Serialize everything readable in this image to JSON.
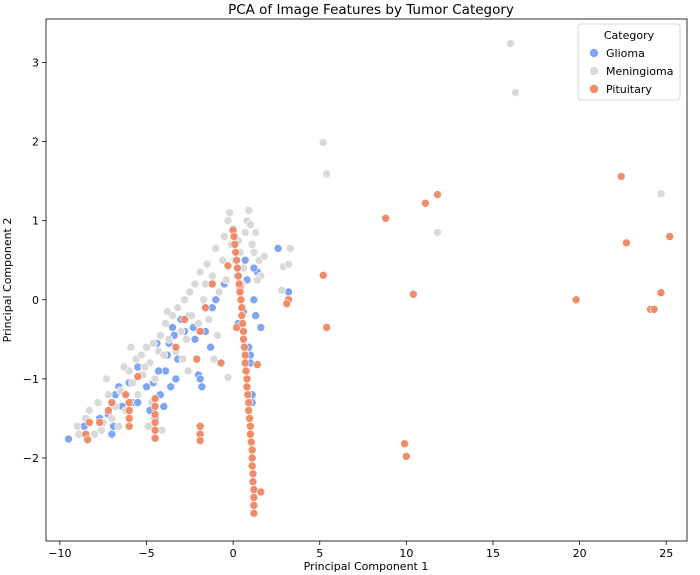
{
  "chart_data": {
    "type": "scatter",
    "title": "PCA of Image Features by Tumor Category",
    "xlabel": "Principal Component 1",
    "ylabel": "Principal Component 2",
    "xlim": [
      -10.8,
      26.2
    ],
    "ylim": [
      -3.05,
      3.55
    ],
    "xticks": [
      -10,
      -5,
      0,
      5,
      10,
      15,
      20,
      25
    ],
    "yticks": [
      -2,
      -1,
      0,
      1,
      2,
      3
    ],
    "grid": false,
    "legend": {
      "title": "Category",
      "position": "top-right"
    },
    "series": [
      {
        "name": "Glioma",
        "color": "#7ea6f0",
        "points": [
          [
            -9.5,
            -1.76
          ],
          [
            -8.6,
            -1.6
          ],
          [
            -7.7,
            -1.5
          ],
          [
            -7.2,
            -1.45
          ],
          [
            -7.0,
            -1.7
          ],
          [
            -6.9,
            -1.6
          ],
          [
            -6.8,
            -1.2
          ],
          [
            -6.6,
            -1.1
          ],
          [
            -6.4,
            -1.35
          ],
          [
            -6.0,
            -1.05
          ],
          [
            -5.8,
            -1.3
          ],
          [
            -5.5,
            -0.85
          ],
          [
            -5.3,
            -0.95
          ],
          [
            -5.0,
            -1.1
          ],
          [
            -4.8,
            -1.4
          ],
          [
            -4.6,
            -1.05
          ],
          [
            -4.5,
            -1.5
          ],
          [
            -4.4,
            -0.55
          ],
          [
            -4.2,
            -1.2
          ],
          [
            -4.0,
            -1.35
          ],
          [
            -3.9,
            -0.9
          ],
          [
            -3.8,
            -0.7
          ],
          [
            -3.6,
            -1.1
          ],
          [
            -3.5,
            -0.35
          ],
          [
            -3.4,
            -0.45
          ],
          [
            -3.2,
            -0.75
          ],
          [
            -3.0,
            -0.25
          ],
          [
            -3.3,
            -1.0
          ],
          [
            -2.8,
            -0.4
          ],
          [
            -2.5,
            -0.2
          ],
          [
            -2.3,
            -0.35
          ],
          [
            -2.0,
            -0.95
          ],
          [
            -1.9,
            -1.0
          ],
          [
            -1.8,
            -1.1
          ],
          [
            -1.6,
            -0.4
          ],
          [
            -1.3,
            -0.6
          ],
          [
            -1.2,
            -0.1
          ],
          [
            -1.0,
            0.0
          ],
          [
            -0.8,
            0.1
          ],
          [
            -0.5,
            0.2
          ],
          [
            0.3,
            -0.3
          ],
          [
            0.5,
            0.2
          ],
          [
            0.7,
            0.5
          ],
          [
            0.8,
            0.25
          ],
          [
            0.9,
            -0.6
          ],
          [
            1.0,
            -0.7
          ],
          [
            1.0,
            -0.8
          ],
          [
            1.1,
            -1.2
          ],
          [
            1.1,
            -1.3
          ],
          [
            1.2,
            0.0
          ],
          [
            1.3,
            -0.2
          ],
          [
            1.4,
            0.35
          ],
          [
            1.6,
            -0.35
          ],
          [
            2.6,
            0.65
          ],
          [
            3.2,
            0.1
          ],
          [
            -5.5,
            -1.3
          ],
          [
            -4.3,
            -0.9
          ],
          [
            -3.7,
            -0.55
          ],
          [
            -2.2,
            -0.5
          ],
          [
            0.6,
            -0.15
          ],
          [
            1.2,
            0.4
          ]
        ]
      },
      {
        "name": "Meningioma",
        "color": "#d9d9d9",
        "points": [
          [
            -8.5,
            -1.5
          ],
          [
            -8.0,
            -1.7
          ],
          [
            -8.3,
            -1.4
          ],
          [
            -7.8,
            -1.3
          ],
          [
            -7.5,
            -1.55
          ],
          [
            -7.6,
            -1.65
          ],
          [
            -7.2,
            -1.2
          ],
          [
            -7.0,
            -1.5
          ],
          [
            -6.8,
            -1.35
          ],
          [
            -6.5,
            -1.15
          ],
          [
            -6.2,
            -1.4
          ],
          [
            -6.0,
            -0.9
          ],
          [
            -5.8,
            -1.05
          ],
          [
            -5.6,
            -0.75
          ],
          [
            -5.5,
            -1.2
          ],
          [
            -5.3,
            -0.7
          ],
          [
            -5.2,
            -0.95
          ],
          [
            -5.0,
            -0.6
          ],
          [
            -4.9,
            -1.6
          ],
          [
            -4.8,
            -0.8
          ],
          [
            -4.6,
            -0.55
          ],
          [
            -4.5,
            -1.0
          ],
          [
            -4.3,
            -0.65
          ],
          [
            -4.2,
            -0.45
          ],
          [
            -4.0,
            -0.7
          ],
          [
            -3.9,
            -0.3
          ],
          [
            -3.7,
            -0.5
          ],
          [
            -3.5,
            -0.2
          ],
          [
            -3.3,
            -0.65
          ],
          [
            -3.2,
            -0.1
          ],
          [
            -3.0,
            -0.4
          ],
          [
            -2.8,
            0.0
          ],
          [
            -2.7,
            -0.5
          ],
          [
            -2.5,
            0.1
          ],
          [
            -2.4,
            -0.2
          ],
          [
            -2.2,
            0.2
          ],
          [
            -2.0,
            -0.3
          ],
          [
            -1.9,
            0.35
          ],
          [
            -1.7,
            0.0
          ],
          [
            -1.5,
            0.45
          ],
          [
            -1.4,
            -0.25
          ],
          [
            -1.2,
            0.3
          ],
          [
            -1.0,
            0.65
          ],
          [
            -0.8,
            0.1
          ],
          [
            -0.6,
            0.5
          ],
          [
            -0.5,
            0.8
          ],
          [
            -0.4,
            0.25
          ],
          [
            -0.3,
            1.0
          ],
          [
            -0.2,
            1.1
          ],
          [
            -0.1,
            0.7
          ],
          [
            0.0,
            0.9
          ],
          [
            0.1,
            0.5
          ],
          [
            0.2,
            0.3
          ],
          [
            0.3,
            0.75
          ],
          [
            0.4,
            0.6
          ],
          [
            0.6,
            0.4
          ],
          [
            0.7,
            0.85
          ],
          [
            0.8,
            1.0
          ],
          [
            0.9,
            1.13
          ],
          [
            1.0,
            0.95
          ],
          [
            1.1,
            0.7
          ],
          [
            1.2,
            0.6
          ],
          [
            1.3,
            0.85
          ],
          [
            1.5,
            0.5
          ],
          [
            1.6,
            0.3
          ],
          [
            1.8,
            0.55
          ],
          [
            2.9,
            0.42
          ],
          [
            3.2,
            0.45
          ],
          [
            3.3,
            0.65
          ],
          [
            2.8,
            0.12
          ],
          [
            -9.0,
            -1.6
          ],
          [
            -8.9,
            -1.7
          ],
          [
            -6.6,
            -1.6
          ],
          [
            -4.1,
            -1.65
          ],
          [
            -1.1,
            -0.75
          ],
          [
            -0.3,
            -0.98
          ],
          [
            -2.6,
            -0.9
          ],
          [
            5.2,
            1.99
          ],
          [
            5.4,
            1.59
          ],
          [
            11.8,
            0.85
          ],
          [
            16.0,
            3.24
          ],
          [
            16.3,
            2.62
          ],
          [
            24.7,
            1.34
          ],
          [
            -5.9,
            -0.6
          ],
          [
            -5.1,
            -0.85
          ],
          [
            -3.8,
            -0.15
          ],
          [
            -2.9,
            -0.75
          ],
          [
            -1.6,
            0.2
          ],
          [
            -0.9,
            -0.45
          ],
          [
            0.5,
            0.2
          ],
          [
            1.4,
            0.25
          ],
          [
            -7.3,
            -1.0
          ],
          [
            -6.3,
            -0.85
          ],
          [
            -4.7,
            -1.3
          ]
        ]
      },
      {
        "name": "Pituitary",
        "color": "#ef8c6a",
        "points": [
          [
            -8.5,
            -1.7
          ],
          [
            -8.4,
            -1.77
          ],
          [
            -8.3,
            -1.55
          ],
          [
            -7.7,
            -1.55
          ],
          [
            -7.2,
            -1.4
          ],
          [
            -7.0,
            -1.3
          ],
          [
            -6.2,
            -1.2
          ],
          [
            -6.0,
            -1.3
          ],
          [
            -6.0,
            -1.4
          ],
          [
            -6.0,
            -1.5
          ],
          [
            -6.0,
            -1.6
          ],
          [
            -5.5,
            -0.97
          ],
          [
            -4.5,
            -1.25
          ],
          [
            -4.5,
            -1.35
          ],
          [
            -4.5,
            -1.45
          ],
          [
            -4.5,
            -1.55
          ],
          [
            -4.5,
            -1.65
          ],
          [
            -4.5,
            -1.75
          ],
          [
            -3.3,
            -0.6
          ],
          [
            -2.8,
            -0.25
          ],
          [
            -2.1,
            -0.75
          ],
          [
            -1.9,
            -1.6
          ],
          [
            -1.9,
            -1.7
          ],
          [
            -1.9,
            -1.78
          ],
          [
            -1.9,
            -0.4
          ],
          [
            -1.6,
            -0.1
          ],
          [
            -1.2,
            0.2
          ],
          [
            -0.7,
            -0.8
          ],
          [
            -0.3,
            0.43
          ],
          [
            0.3,
            0.3
          ],
          [
            0.4,
            0.15
          ],
          [
            0.2,
            -0.35
          ],
          [
            0.0,
            0.88
          ],
          [
            0.05,
            0.8
          ],
          [
            0.1,
            0.7
          ],
          [
            0.15,
            0.6
          ],
          [
            0.2,
            0.5
          ],
          [
            0.25,
            0.4
          ],
          [
            0.3,
            0.3
          ],
          [
            0.35,
            0.2
          ],
          [
            0.4,
            0.1
          ],
          [
            0.45,
            0.0
          ],
          [
            0.5,
            -0.1
          ],
          [
            0.5,
            -0.2
          ],
          [
            0.55,
            -0.3
          ],
          [
            0.6,
            -0.4
          ],
          [
            0.6,
            -0.5
          ],
          [
            0.65,
            -0.6
          ],
          [
            0.7,
            -0.7
          ],
          [
            0.7,
            -0.8
          ],
          [
            0.75,
            -0.9
          ],
          [
            0.8,
            -1.0
          ],
          [
            0.8,
            -1.1
          ],
          [
            0.85,
            -1.2
          ],
          [
            0.9,
            -1.3
          ],
          [
            0.9,
            -1.4
          ],
          [
            0.95,
            -1.5
          ],
          [
            1.0,
            -1.6
          ],
          [
            1.0,
            -1.7
          ],
          [
            1.05,
            -1.8
          ],
          [
            1.1,
            -1.9
          ],
          [
            1.1,
            -2.0
          ],
          [
            1.1,
            -2.1
          ],
          [
            1.15,
            -2.2
          ],
          [
            1.15,
            -2.3
          ],
          [
            1.2,
            -2.4
          ],
          [
            1.2,
            -2.5
          ],
          [
            1.2,
            -2.6
          ],
          [
            1.2,
            -2.7
          ],
          [
            1.6,
            -2.43
          ],
          [
            1.4,
            -0.82
          ],
          [
            3.2,
            0.0
          ],
          [
            3.1,
            -0.05
          ],
          [
            5.2,
            0.31
          ],
          [
            5.4,
            -0.35
          ],
          [
            8.8,
            1.03
          ],
          [
            9.9,
            -1.82
          ],
          [
            10.0,
            -1.98
          ],
          [
            10.4,
            0.07
          ],
          [
            11.1,
            1.22
          ],
          [
            11.8,
            1.33
          ],
          [
            19.8,
            0.0
          ],
          [
            22.4,
            1.56
          ],
          [
            22.7,
            0.72
          ],
          [
            24.1,
            -0.12
          ],
          [
            24.3,
            -0.12
          ],
          [
            24.7,
            0.09
          ],
          [
            25.2,
            0.8
          ]
        ]
      }
    ]
  }
}
